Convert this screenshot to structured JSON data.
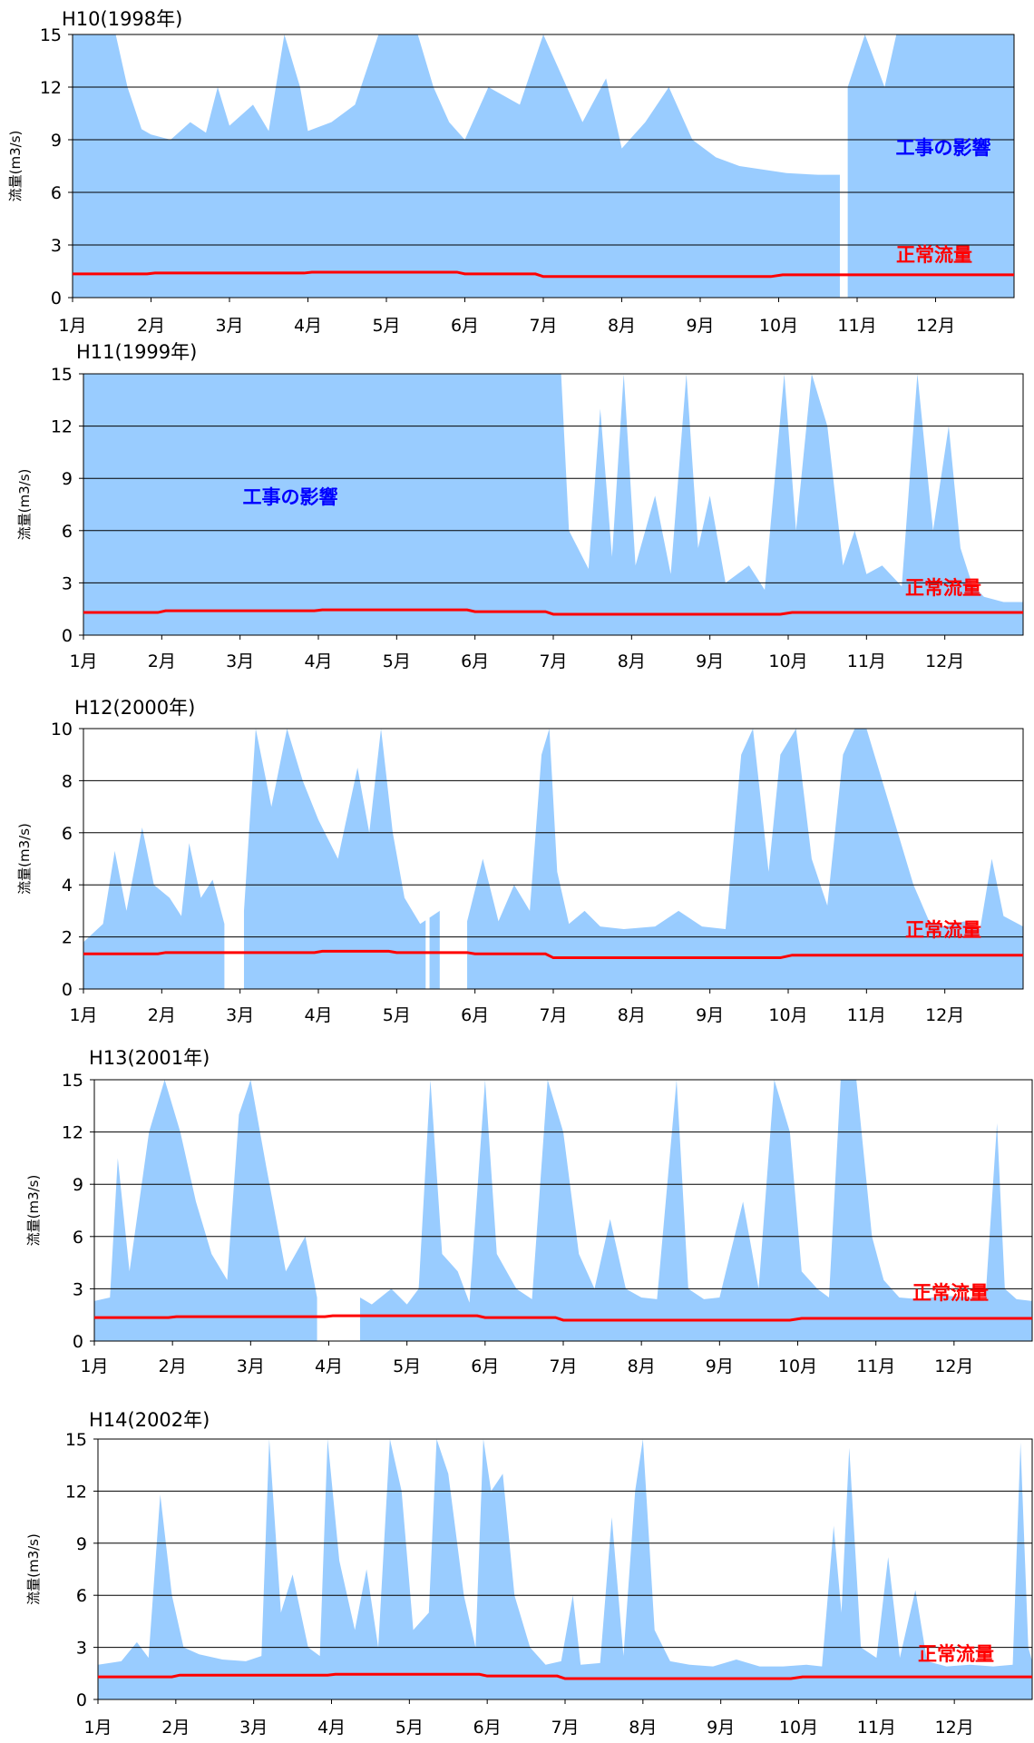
{
  "common": {
    "ylabel": "流量(m3/s)",
    "xticks": [
      "1月",
      "2月",
      "3月",
      "4月",
      "5月",
      "6月",
      "7月",
      "8月",
      "9月",
      "10月",
      "11月",
      "12月"
    ],
    "normal_flow_label": "正常流量",
    "construction_label": "工事の影響",
    "colors": {
      "flow": "#99ccff",
      "normal_flow": "#ff0000",
      "construction_text": "#0000ff",
      "normal_text": "#ff0000",
      "grid": "#000000"
    }
  },
  "chart_data": [
    {
      "type": "area",
      "title": "H10(1998年)",
      "ylim": [
        0,
        15
      ],
      "yticks": [
        0,
        3,
        6,
        9,
        12,
        15
      ],
      "annotation": "工事の影響",
      "gaps_month": [
        [
          9.78,
          9.88
        ]
      ],
      "flow_points": [
        [
          0,
          15
        ],
        [
          0.55,
          15
        ],
        [
          0.7,
          12
        ],
        [
          0.88,
          9.6
        ],
        [
          1.0,
          9.3
        ],
        [
          1.25,
          9.0
        ],
        [
          1.5,
          10
        ],
        [
          1.7,
          9.4
        ],
        [
          1.85,
          12
        ],
        [
          2.0,
          9.8
        ],
        [
          2.3,
          11
        ],
        [
          2.5,
          9.5
        ],
        [
          2.7,
          15
        ],
        [
          2.9,
          12
        ],
        [
          3.0,
          9.5
        ],
        [
          3.3,
          10
        ],
        [
          3.6,
          11
        ],
        [
          3.9,
          15
        ],
        [
          4.4,
          15
        ],
        [
          4.6,
          12
        ],
        [
          4.8,
          10
        ],
        [
          5.0,
          9
        ],
        [
          5.3,
          12
        ],
        [
          5.7,
          11
        ],
        [
          6.0,
          15
        ],
        [
          6.3,
          12
        ],
        [
          6.5,
          10
        ],
        [
          6.8,
          12.5
        ],
        [
          7.0,
          8.5
        ],
        [
          7.3,
          10
        ],
        [
          7.6,
          12
        ],
        [
          7.9,
          9
        ],
        [
          8.2,
          8
        ],
        [
          8.5,
          7.5
        ],
        [
          8.8,
          7.3
        ],
        [
          9.1,
          7.1
        ],
        [
          9.5,
          7
        ],
        [
          9.78,
          7
        ],
        [
          9.88,
          12
        ],
        [
          10.1,
          15
        ],
        [
          10.35,
          12
        ],
        [
          10.5,
          15
        ],
        [
          11.0,
          15
        ],
        [
          11.6,
          15
        ],
        [
          12,
          15
        ]
      ],
      "normal_flow": [
        [
          0,
          1.35
        ],
        [
          0.95,
          1.35
        ],
        [
          1.05,
          1.4
        ],
        [
          2.95,
          1.4
        ],
        [
          3.05,
          1.45
        ],
        [
          4.9,
          1.45
        ],
        [
          5.0,
          1.35
        ],
        [
          5.9,
          1.35
        ],
        [
          6.0,
          1.2
        ],
        [
          8.9,
          1.2
        ],
        [
          9.05,
          1.3
        ],
        [
          12,
          1.3
        ]
      ]
    },
    {
      "type": "area",
      "title": "H11(1999年)",
      "ylim": [
        0,
        15
      ],
      "yticks": [
        0,
        3,
        6,
        9,
        12,
        15
      ],
      "annotation": "工事の影響",
      "gaps_month": [],
      "flow_points": [
        [
          0,
          15
        ],
        [
          6.1,
          15
        ],
        [
          6.2,
          6
        ],
        [
          6.45,
          3.8
        ],
        [
          6.6,
          13
        ],
        [
          6.75,
          4.5
        ],
        [
          6.9,
          15
        ],
        [
          7.05,
          4
        ],
        [
          7.3,
          8
        ],
        [
          7.5,
          3.5
        ],
        [
          7.7,
          15
        ],
        [
          7.85,
          5
        ],
        [
          8.0,
          8
        ],
        [
          8.2,
          3
        ],
        [
          8.5,
          4
        ],
        [
          8.7,
          2.6
        ],
        [
          8.95,
          15
        ],
        [
          9.1,
          6
        ],
        [
          9.3,
          15
        ],
        [
          9.5,
          12
        ],
        [
          9.7,
          4
        ],
        [
          9.85,
          6
        ],
        [
          10.0,
          3.5
        ],
        [
          10.2,
          4
        ],
        [
          10.45,
          2.8
        ],
        [
          10.65,
          15
        ],
        [
          10.85,
          6
        ],
        [
          11.05,
          12
        ],
        [
          11.2,
          5
        ],
        [
          11.35,
          2.9
        ],
        [
          11.5,
          2.2
        ],
        [
          11.75,
          1.9
        ],
        [
          12,
          1.9
        ]
      ],
      "normal_flow": [
        [
          0,
          1.3
        ],
        [
          0.95,
          1.3
        ],
        [
          1.05,
          1.4
        ],
        [
          2.95,
          1.4
        ],
        [
          3.05,
          1.45
        ],
        [
          4.9,
          1.45
        ],
        [
          5.0,
          1.35
        ],
        [
          5.9,
          1.35
        ],
        [
          6.0,
          1.2
        ],
        [
          8.9,
          1.2
        ],
        [
          9.05,
          1.3
        ],
        [
          12,
          1.3
        ]
      ]
    },
    {
      "type": "area",
      "title": "H12(2000年)",
      "ylim": [
        0,
        10
      ],
      "yticks": [
        0,
        2,
        4,
        6,
        8,
        10
      ],
      "gaps_month": [
        [
          1.8,
          2.05
        ],
        [
          4.37,
          4.42
        ],
        [
          4.55,
          4.9
        ]
      ],
      "flow_points": [
        [
          0,
          1.8
        ],
        [
          0.25,
          2.5
        ],
        [
          0.4,
          5.3
        ],
        [
          0.55,
          3
        ],
        [
          0.75,
          6.2
        ],
        [
          0.9,
          4
        ],
        [
          1.1,
          3.5
        ],
        [
          1.25,
          2.8
        ],
        [
          1.35,
          5.6
        ],
        [
          1.5,
          3.5
        ],
        [
          1.65,
          4.2
        ],
        [
          1.8,
          2.5
        ],
        [
          2.05,
          3
        ],
        [
          2.2,
          10
        ],
        [
          2.4,
          7
        ],
        [
          2.6,
          10
        ],
        [
          2.8,
          8
        ],
        [
          3.0,
          6.5
        ],
        [
          3.25,
          5
        ],
        [
          3.5,
          8.5
        ],
        [
          3.65,
          6
        ],
        [
          3.8,
          10
        ],
        [
          3.95,
          6
        ],
        [
          4.1,
          3.5
        ],
        [
          4.3,
          2.5
        ],
        [
          4.55,
          3
        ],
        [
          4.75,
          6
        ],
        [
          4.9,
          2.6
        ],
        [
          5.1,
          5
        ],
        [
          5.3,
          2.6
        ],
        [
          5.5,
          4
        ],
        [
          5.7,
          3
        ],
        [
          5.85,
          9
        ],
        [
          5.95,
          10
        ],
        [
          6.05,
          4.5
        ],
        [
          6.2,
          2.5
        ],
        [
          6.4,
          3
        ],
        [
          6.6,
          2.4
        ],
        [
          6.9,
          2.3
        ],
        [
          7.3,
          2.4
        ],
        [
          7.6,
          3
        ],
        [
          7.9,
          2.4
        ],
        [
          8.2,
          2.3
        ],
        [
          8.4,
          9
        ],
        [
          8.55,
          10
        ],
        [
          8.75,
          4.5
        ],
        [
          8.9,
          9
        ],
        [
          9.1,
          10
        ],
        [
          9.3,
          5
        ],
        [
          9.5,
          3.2
        ],
        [
          9.7,
          9
        ],
        [
          9.85,
          10
        ],
        [
          10.0,
          10
        ],
        [
          10.2,
          8
        ],
        [
          10.4,
          6
        ],
        [
          10.6,
          4
        ],
        [
          10.8,
          2.6
        ],
        [
          11.0,
          2.4
        ],
        [
          11.25,
          2.6
        ],
        [
          11.45,
          2.3
        ],
        [
          11.6,
          5
        ],
        [
          11.75,
          2.8
        ],
        [
          12,
          2.4
        ]
      ],
      "normal_flow": [
        [
          0,
          1.35
        ],
        [
          0.95,
          1.35
        ],
        [
          1.05,
          1.4
        ],
        [
          2.95,
          1.4
        ],
        [
          3.05,
          1.45
        ],
        [
          3.9,
          1.45
        ],
        [
          4.0,
          1.4
        ],
        [
          4.9,
          1.4
        ],
        [
          5.0,
          1.35
        ],
        [
          5.9,
          1.35
        ],
        [
          6.0,
          1.2
        ],
        [
          8.9,
          1.2
        ],
        [
          9.05,
          1.3
        ],
        [
          12,
          1.3
        ]
      ]
    },
    {
      "type": "area",
      "title": "H13(2001年)",
      "ylim": [
        0,
        15
      ],
      "yticks": [
        0,
        3,
        6,
        9,
        12,
        15
      ],
      "gaps_month": [
        [
          2.85,
          3.4
        ]
      ],
      "flow_points": [
        [
          0,
          2.3
        ],
        [
          0.2,
          2.5
        ],
        [
          0.3,
          10.5
        ],
        [
          0.45,
          4
        ],
        [
          0.7,
          12
        ],
        [
          0.9,
          15
        ],
        [
          1.1,
          12
        ],
        [
          1.3,
          8
        ],
        [
          1.5,
          5
        ],
        [
          1.7,
          3.5
        ],
        [
          1.85,
          13
        ],
        [
          2.0,
          15
        ],
        [
          2.2,
          10
        ],
        [
          2.45,
          4
        ],
        [
          2.7,
          6
        ],
        [
          2.85,
          2.5
        ],
        [
          3.4,
          2.5
        ],
        [
          3.55,
          2.1
        ],
        [
          3.8,
          3
        ],
        [
          4.0,
          2.1
        ],
        [
          4.15,
          3
        ],
        [
          4.3,
          15
        ],
        [
          4.45,
          5
        ],
        [
          4.65,
          4
        ],
        [
          4.8,
          2.2
        ],
        [
          5.0,
          15
        ],
        [
          5.15,
          5
        ],
        [
          5.4,
          3
        ],
        [
          5.6,
          2.4
        ],
        [
          5.8,
          15
        ],
        [
          6.0,
          12
        ],
        [
          6.2,
          5
        ],
        [
          6.4,
          3
        ],
        [
          6.6,
          7
        ],
        [
          6.8,
          3
        ],
        [
          7.0,
          2.5
        ],
        [
          7.2,
          2.4
        ],
        [
          7.45,
          15
        ],
        [
          7.6,
          3
        ],
        [
          7.8,
          2.4
        ],
        [
          8.0,
          2.5
        ],
        [
          8.3,
          8
        ],
        [
          8.5,
          3
        ],
        [
          8.7,
          15
        ],
        [
          8.9,
          12
        ],
        [
          9.05,
          4
        ],
        [
          9.25,
          3
        ],
        [
          9.4,
          2.5
        ],
        [
          9.55,
          15
        ],
        [
          9.75,
          15
        ],
        [
          9.95,
          6
        ],
        [
          10.1,
          3.5
        ],
        [
          10.3,
          2.5
        ],
        [
          10.55,
          2.4
        ],
        [
          10.9,
          2.6
        ],
        [
          11.2,
          2.5
        ],
        [
          11.4,
          2.3
        ],
        [
          11.55,
          12.5
        ],
        [
          11.65,
          3
        ],
        [
          11.8,
          2.4
        ],
        [
          12,
          2.3
        ]
      ],
      "normal_flow": [
        [
          0,
          1.35
        ],
        [
          0.95,
          1.35
        ],
        [
          1.05,
          1.4
        ],
        [
          2.95,
          1.4
        ],
        [
          3.05,
          1.45
        ],
        [
          4.9,
          1.45
        ],
        [
          5.0,
          1.35
        ],
        [
          5.9,
          1.35
        ],
        [
          6.0,
          1.2
        ],
        [
          8.9,
          1.2
        ],
        [
          9.05,
          1.3
        ],
        [
          12,
          1.3
        ]
      ]
    },
    {
      "type": "area",
      "title": "H14(2002年)",
      "ylim": [
        0,
        15
      ],
      "yticks": [
        0,
        3,
        6,
        9,
        12,
        15
      ],
      "gaps_month": [],
      "flow_points": [
        [
          0,
          2
        ],
        [
          0.3,
          2.2
        ],
        [
          0.5,
          3.3
        ],
        [
          0.65,
          2.4
        ],
        [
          0.8,
          11.8
        ],
        [
          0.95,
          6
        ],
        [
          1.1,
          3
        ],
        [
          1.3,
          2.6
        ],
        [
          1.6,
          2.3
        ],
        [
          1.9,
          2.2
        ],
        [
          2.1,
          2.5
        ],
        [
          2.2,
          15
        ],
        [
          2.35,
          5
        ],
        [
          2.5,
          7.2
        ],
        [
          2.7,
          3
        ],
        [
          2.85,
          2.5
        ],
        [
          2.95,
          15
        ],
        [
          3.1,
          8
        ],
        [
          3.3,
          4
        ],
        [
          3.45,
          7.5
        ],
        [
          3.6,
          3
        ],
        [
          3.75,
          15
        ],
        [
          3.9,
          12
        ],
        [
          4.05,
          4
        ],
        [
          4.25,
          5
        ],
        [
          4.35,
          15
        ],
        [
          4.5,
          13
        ],
        [
          4.7,
          6
        ],
        [
          4.85,
          3
        ],
        [
          4.95,
          15
        ],
        [
          5.05,
          12
        ],
        [
          5.2,
          13
        ],
        [
          5.35,
          6
        ],
        [
          5.55,
          3
        ],
        [
          5.75,
          2
        ],
        [
          5.95,
          2.2
        ],
        [
          6.1,
          6
        ],
        [
          6.2,
          2
        ],
        [
          6.45,
          2.1
        ],
        [
          6.6,
          10.5
        ],
        [
          6.75,
          2.5
        ],
        [
          6.9,
          12
        ],
        [
          7.0,
          15
        ],
        [
          7.15,
          4
        ],
        [
          7.35,
          2.2
        ],
        [
          7.6,
          2.0
        ],
        [
          7.9,
          1.9
        ],
        [
          8.2,
          2.3
        ],
        [
          8.5,
          1.9
        ],
        [
          8.8,
          1.9
        ],
        [
          9.1,
          2.0
        ],
        [
          9.3,
          1.9
        ],
        [
          9.45,
          10
        ],
        [
          9.55,
          5
        ],
        [
          9.65,
          14.5
        ],
        [
          9.8,
          3
        ],
        [
          10.0,
          2.4
        ],
        [
          10.15,
          8.2
        ],
        [
          10.3,
          2.4
        ],
        [
          10.5,
          6.3
        ],
        [
          10.65,
          2.2
        ],
        [
          10.9,
          1.9
        ],
        [
          11.2,
          2.0
        ],
        [
          11.5,
          1.9
        ],
        [
          11.75,
          2
        ],
        [
          11.85,
          14.8
        ],
        [
          11.95,
          3
        ],
        [
          12,
          2.2
        ]
      ],
      "normal_flow": [
        [
          0,
          1.3
        ],
        [
          0.95,
          1.3
        ],
        [
          1.05,
          1.4
        ],
        [
          2.95,
          1.4
        ],
        [
          3.05,
          1.45
        ],
        [
          4.9,
          1.45
        ],
        [
          5.0,
          1.35
        ],
        [
          5.9,
          1.35
        ],
        [
          6.0,
          1.2
        ],
        [
          8.9,
          1.2
        ],
        [
          9.05,
          1.3
        ],
        [
          12,
          1.3
        ]
      ]
    }
  ]
}
